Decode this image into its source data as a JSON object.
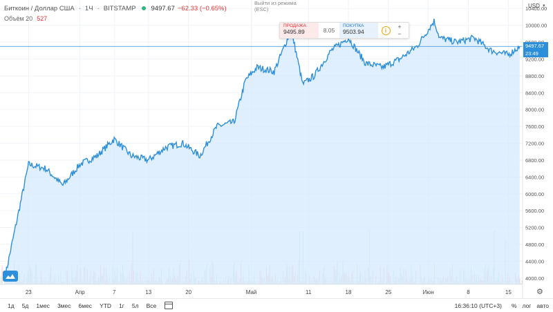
{
  "header": {
    "symbol_name": "Биткоин / Доллар США",
    "interval": "1Ч",
    "exchange": "BITSTAMP",
    "last_price": "9497.67",
    "change": "−62.33 (−0.65%)",
    "status_color": "#2db87e"
  },
  "volume": {
    "label": "Объём 20",
    "value": "527"
  },
  "exit_hint": "Выйти из режима (ESC)",
  "trade": {
    "sell_label": "ПРОДАЖА",
    "sell_value": "9495.89",
    "spread": "8.05",
    "buy_label": "ПОКУПКА",
    "buy_value": "9503.94",
    "plus": "+",
    "minus": "−"
  },
  "price_scale": {
    "currency": "USD",
    "current_price": "9497.67",
    "countdown": "23:49",
    "tick_labels": [
      "10400.00",
      "10000.00",
      "9600.00",
      "9200.00",
      "8800.00",
      "8400.00",
      "8000.00",
      "7600.00",
      "7200.00",
      "6800.00",
      "6400.00",
      "6000.00",
      "5600.00",
      "5200.00",
      "4800.00",
      "4400.00",
      "4000.00"
    ]
  },
  "time_axis": {
    "labels": [
      "23",
      "Апр",
      "7",
      "13",
      "20",
      "Май",
      "11",
      "18",
      "25",
      "Июн",
      "8",
      "15"
    ]
  },
  "bottom_toolbar": {
    "ranges": [
      "1д",
      "5д",
      "1мес",
      "3мес",
      "6мес",
      "YTD",
      "1г",
      "5л",
      "Все"
    ],
    "clock": "16:36:10 (UTC+3)",
    "percent": "%",
    "log": "лог",
    "auto": "авто"
  },
  "colors": {
    "line": "#2d8ed9",
    "fill": "#d6eafc",
    "vol_up": "#c9e8df",
    "vol_down": "#f6c9cb",
    "grid": "#f0f3f7"
  },
  "chart_data": {
    "type": "area",
    "x": [
      "2020-03-19",
      "2020-03-23",
      "2020-03-26",
      "2020-03-29",
      "2020-04-01",
      "2020-04-04",
      "2020-04-07",
      "2020-04-10",
      "2020-04-13",
      "2020-04-16",
      "2020-04-19",
      "2020-04-22",
      "2020-04-25",
      "2020-04-28",
      "2020-04-30",
      "2020-05-02",
      "2020-05-05",
      "2020-05-08",
      "2020-05-10",
      "2020-05-12",
      "2020-05-15",
      "2020-05-18",
      "2020-05-21",
      "2020-05-24",
      "2020-05-27",
      "2020-05-30",
      "2020-06-02",
      "2020-06-03",
      "2020-06-06",
      "2020-06-09",
      "2020-06-12",
      "2020-06-15",
      "2020-06-17"
    ],
    "y": [
      4100,
      6700,
      6600,
      6200,
      6700,
      6900,
      7300,
      6900,
      6800,
      7100,
      7200,
      6900,
      7600,
      7700,
      8700,
      9000,
      8900,
      9900,
      8600,
      8800,
      9400,
      9700,
      9100,
      9000,
      9200,
      9500,
      10100,
      9700,
      9600,
      9700,
      9400,
      9300,
      9497
    ],
    "ylim": [
      3850,
      10600
    ],
    "ylabel": "",
    "xlabel": "",
    "grid": true,
    "legend": "none"
  }
}
